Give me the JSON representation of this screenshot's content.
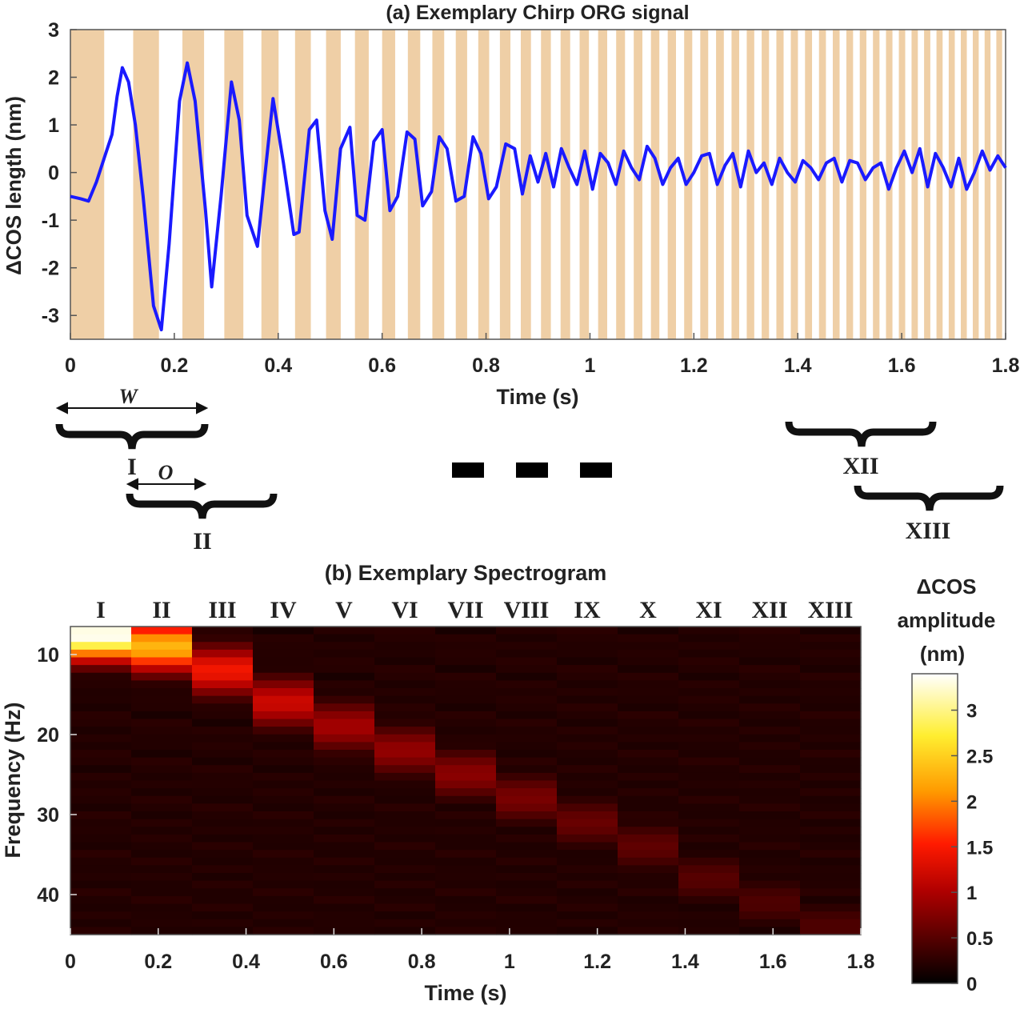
{
  "chart_data": [
    {
      "type": "line",
      "title": "(a) Exemplary Chirp ORG signal",
      "xlabel": "Time (s)",
      "ylabel": "ΔCOS length (nm)",
      "xlim": [
        0,
        1.8
      ],
      "ylim": [
        -3.5,
        3
      ],
      "xticks": [
        "0",
        "0.2",
        "0.4",
        "0.6",
        "0.8",
        "1",
        "1.2",
        "1.4",
        "1.6",
        "1.8"
      ],
      "yticks": [
        "-3",
        "-2",
        "-1",
        "0",
        "1",
        "2",
        "3"
      ],
      "line_color": "#1a1aff",
      "stimulus_color": "#efcfa6",
      "stimulus_chirp": {
        "f_start_hz": 7,
        "f_end_hz": 45,
        "duration_s": 1.8
      },
      "series": [
        {
          "x": [
            0,
            0.02,
            0.035,
            0.05,
            0.065,
            0.08,
            0.09,
            0.1,
            0.112,
            0.125,
            0.14,
            0.16,
            0.175,
            0.19,
            0.21,
            0.225,
            0.24,
            0.26,
            0.272,
            0.29,
            0.31,
            0.325,
            0.34,
            0.36,
            0.372,
            0.39,
            0.41,
            0.43,
            0.44,
            0.46,
            0.474,
            0.49,
            0.504,
            0.52,
            0.538,
            0.552,
            0.567,
            0.584,
            0.6,
            0.615,
            0.63,
            0.648,
            0.663,
            0.678,
            0.695,
            0.71,
            0.725,
            0.742,
            0.758,
            0.775,
            0.79,
            0.805,
            0.82,
            0.838,
            0.855,
            0.87,
            0.885,
            0.9,
            0.915,
            0.93,
            0.945,
            0.96,
            0.975,
            0.99,
            1.005,
            1.02,
            1.035,
            1.05,
            1.065,
            1.08,
            1.095,
            1.11,
            1.125,
            1.14,
            1.155,
            1.17,
            1.185,
            1.2,
            1.215,
            1.23,
            1.245,
            1.26,
            1.275,
            1.29,
            1.305,
            1.32,
            1.335,
            1.35,
            1.365,
            1.38,
            1.395,
            1.41,
            1.425,
            1.44,
            1.455,
            1.47,
            1.485,
            1.5,
            1.515,
            1.53,
            1.545,
            1.56,
            1.575,
            1.59,
            1.605,
            1.62,
            1.635,
            1.65,
            1.665,
            1.68,
            1.695,
            1.71,
            1.725,
            1.74,
            1.755,
            1.77,
            1.785,
            1.8
          ],
          "y": [
            -0.5,
            -0.55,
            -0.6,
            -0.2,
            0.3,
            0.8,
            1.6,
            2.2,
            1.9,
            1.0,
            -0.5,
            -2.8,
            -3.3,
            -1.5,
            1.5,
            2.3,
            1.5,
            -0.8,
            -2.4,
            -0.5,
            1.9,
            1.1,
            -0.9,
            -1.55,
            -0.3,
            1.55,
            0.2,
            -1.3,
            -1.25,
            0.9,
            1.1,
            -0.8,
            -1.4,
            0.5,
            0.95,
            -0.9,
            -1.0,
            0.65,
            0.9,
            -0.8,
            -0.5,
            0.85,
            0.7,
            -0.7,
            -0.4,
            0.75,
            0.5,
            -0.6,
            -0.5,
            0.75,
            0.4,
            -0.55,
            -0.3,
            0.6,
            0.5,
            -0.45,
            0.35,
            -0.2,
            0.4,
            -0.3,
            0.5,
            0.1,
            -0.25,
            0.45,
            -0.35,
            0.4,
            0.2,
            -0.25,
            0.45,
            0.1,
            -0.15,
            0.55,
            0.3,
            -0.25,
            0.1,
            0.3,
            -0.25,
            0.0,
            0.35,
            0.4,
            -0.25,
            0.15,
            0.4,
            -0.3,
            0.45,
            0.0,
            0.2,
            -0.25,
            0.3,
            0.0,
            -0.2,
            0.25,
            0.1,
            -0.15,
            0.2,
            0.3,
            -0.2,
            0.25,
            0.2,
            -0.15,
            0.1,
            0.2,
            -0.35,
            0.1,
            0.45,
            0.0,
            0.5,
            -0.3,
            0.4,
            0.1,
            -0.3,
            0.3,
            -0.35,
            0.0,
            0.45,
            0.05,
            0.35,
            0.1
          ]
        }
      ]
    },
    {
      "type": "heatmap",
      "title": "(b) Exemplary Spectrogram",
      "xlabel": "Time (s)",
      "ylabel": "Frequency (Hz)",
      "xlim": [
        0,
        1.8
      ],
      "ylim": [
        6.5,
        45
      ],
      "xticks": [
        "0",
        "0.2",
        "0.4",
        "0.6",
        "0.8",
        "1",
        "1.2",
        "1.4",
        "1.6",
        "1.8"
      ],
      "yticks": [
        "10",
        "20",
        "30",
        "40"
      ],
      "windows": [
        "I",
        "II",
        "III",
        "IV",
        "V",
        "VI",
        "VII",
        "VIII",
        "IX",
        "X",
        "XI",
        "XII",
        "XIII"
      ],
      "peak_frequency_hz": [
        7.5,
        9,
        12,
        16,
        19,
        22,
        25,
        28,
        31,
        34,
        38,
        41,
        44
      ],
      "peak_amplitude_nm": [
        3.4,
        2.3,
        1.45,
        1.2,
        0.95,
        0.85,
        0.8,
        0.7,
        0.6,
        0.55,
        0.5,
        0.45,
        0.45
      ],
      "colorbar": {
        "label": [
          "ΔCOS",
          "amplitude",
          "(nm)"
        ],
        "range": [
          0,
          3.4
        ],
        "ticks": [
          "0",
          "0.5",
          "1",
          "1.5",
          "2",
          "2.5",
          "3"
        ]
      }
    }
  ],
  "annotations": {
    "w_label": "W",
    "o_label": "O",
    "brace_labels": [
      "I",
      "II",
      "XII",
      "XIII"
    ]
  }
}
